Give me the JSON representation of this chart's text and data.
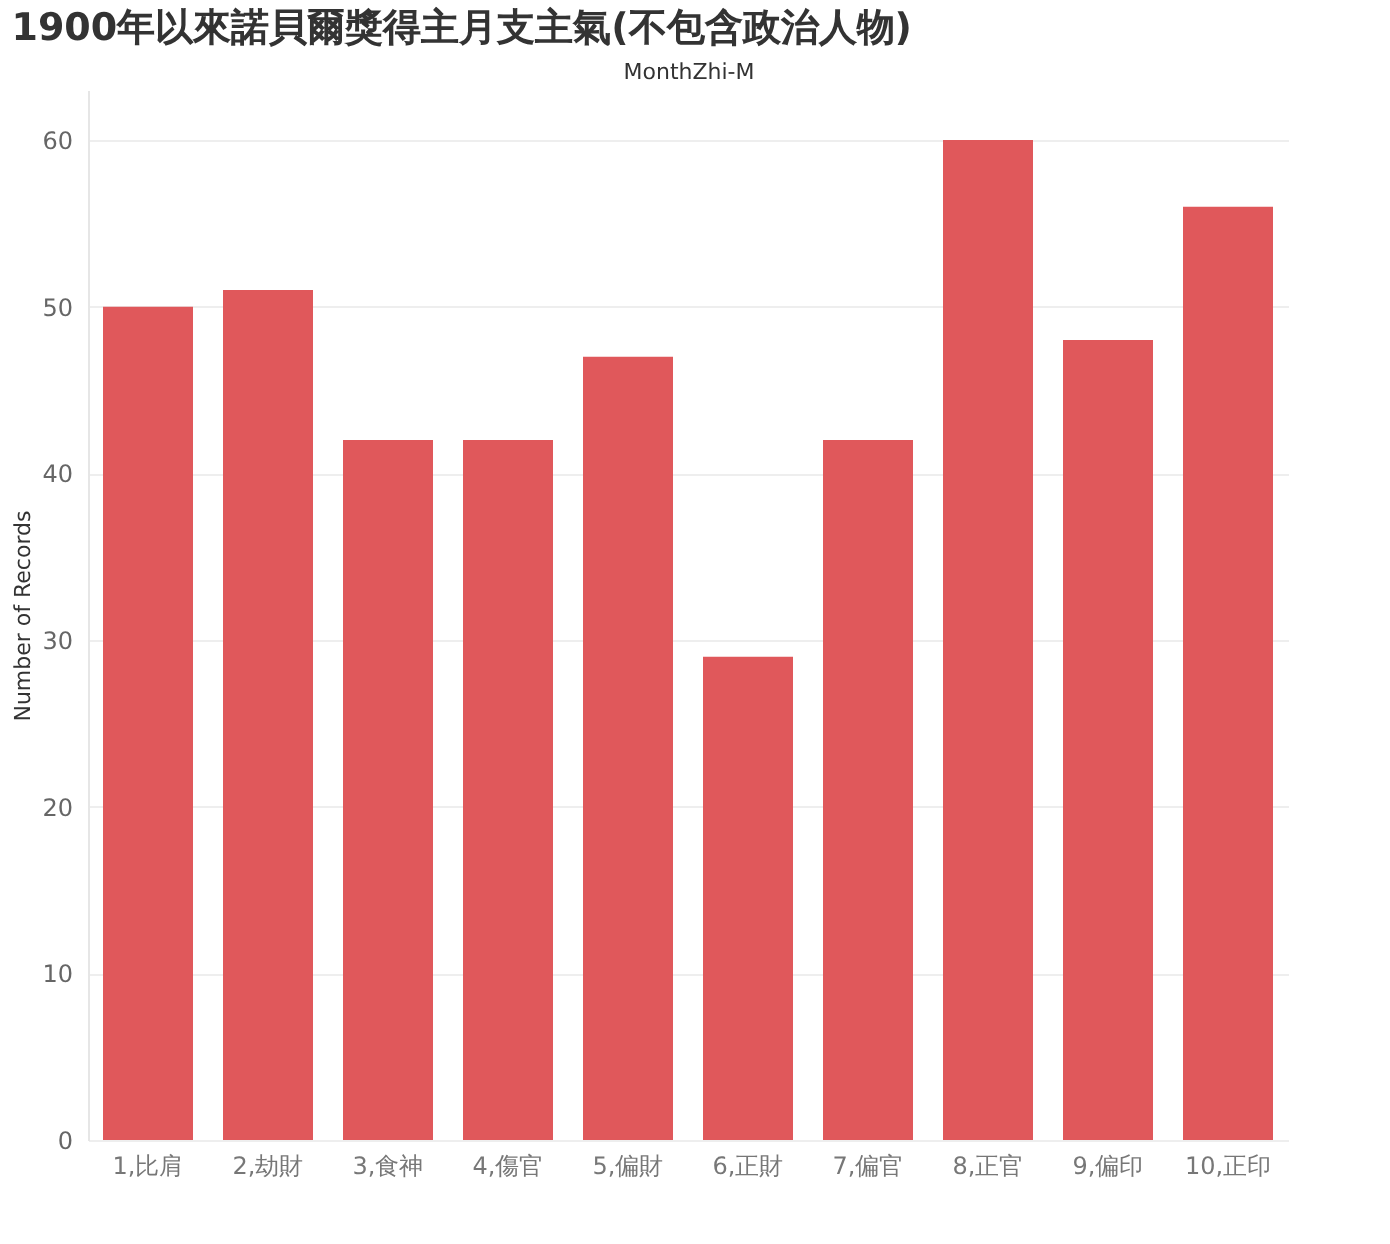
{
  "chart_data": {
    "type": "bar",
    "title": "1900年以來諾貝爾獎得主月支主氣(不包含政治人物)",
    "xlabel": "MonthZhi-M",
    "ylabel": "Number of Records",
    "categories": [
      "1,比肩",
      "2,劫財",
      "3,食神",
      "4,傷官",
      "5,偏財",
      "6,正財",
      "7,偏官",
      "8,正官",
      "9,偏印",
      "10,正印"
    ],
    "values": [
      50,
      51,
      42,
      42,
      47,
      29,
      42,
      60,
      48,
      56
    ],
    "color": "#e0585b",
    "ylim": [
      0,
      63
    ],
    "yticks": [
      0,
      10,
      20,
      30,
      40,
      50,
      60
    ],
    "grid": "y"
  }
}
